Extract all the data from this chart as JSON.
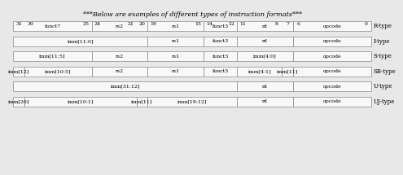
{
  "title": "***Below are examples of different types of instruction formats***",
  "title_fontsize": 5.8,
  "formats": [
    {
      "name": "R-type",
      "fields": [
        {
          "label": "funct7",
          "hi": 31,
          "lo": 25
        },
        {
          "label": "rs2",
          "hi": 24,
          "lo": 20
        },
        {
          "label": "rs1",
          "hi": 19,
          "lo": 15
        },
        {
          "label": "funct3",
          "hi": 14,
          "lo": 12
        },
        {
          "label": "rd",
          "hi": 11,
          "lo": 7
        },
        {
          "label": "opcode",
          "hi": 6,
          "lo": 0
        }
      ]
    },
    {
      "name": "I-type",
      "fields": [
        {
          "label": "imm[11:0]",
          "hi": 31,
          "lo": 20
        },
        {
          "label": "rs1",
          "hi": 19,
          "lo": 15
        },
        {
          "label": "funct3",
          "hi": 14,
          "lo": 12
        },
        {
          "label": "rd",
          "hi": 11,
          "lo": 7
        },
        {
          "label": "opcode",
          "hi": 6,
          "lo": 0
        }
      ]
    },
    {
      "name": "S-type",
      "fields": [
        {
          "label": "imm[11:5]",
          "hi": 31,
          "lo": 25
        },
        {
          "label": "rs2",
          "hi": 24,
          "lo": 20
        },
        {
          "label": "rs1",
          "hi": 19,
          "lo": 15
        },
        {
          "label": "funct3",
          "hi": 14,
          "lo": 12
        },
        {
          "label": "imm[4:0]",
          "hi": 11,
          "lo": 7
        },
        {
          "label": "opcode",
          "hi": 6,
          "lo": 0
        }
      ]
    },
    {
      "name": "SB-type",
      "fields": [
        {
          "label": "imm[12]",
          "hi": 31,
          "lo": 31
        },
        {
          "label": "imm[10:5]",
          "hi": 30,
          "lo": 25
        },
        {
          "label": "rs2",
          "hi": 24,
          "lo": 20
        },
        {
          "label": "rs1",
          "hi": 19,
          "lo": 15
        },
        {
          "label": "funct3",
          "hi": 14,
          "lo": 12
        },
        {
          "label": "imm[4:1]",
          "hi": 11,
          "lo": 8
        },
        {
          "label": "imm[11]",
          "hi": 7,
          "lo": 7
        },
        {
          "label": "opcode",
          "hi": 6,
          "lo": 0
        }
      ]
    },
    {
      "name": "U-type",
      "fields": [
        {
          "label": "imm[31:12]",
          "hi": 31,
          "lo": 12
        },
        {
          "label": "rd",
          "hi": 11,
          "lo": 7
        },
        {
          "label": "opcode",
          "hi": 6,
          "lo": 0
        }
      ]
    },
    {
      "name": "UJ-type",
      "fields": [
        {
          "label": "imm[20]",
          "hi": 31,
          "lo": 31
        },
        {
          "label": "imm[10:1]",
          "hi": 30,
          "lo": 21
        },
        {
          "label": "imm[11]",
          "hi": 20,
          "lo": 20
        },
        {
          "label": "imm[19:12]",
          "hi": 19,
          "lo": 12
        },
        {
          "label": "rd",
          "hi": 11,
          "lo": 7
        },
        {
          "label": "opcode",
          "hi": 6,
          "lo": 0
        }
      ]
    }
  ],
  "header_bits": [
    31,
    30,
    25,
    24,
    21,
    20,
    19,
    15,
    14,
    12,
    11,
    8,
    7,
    6,
    0
  ],
  "bg_color": "#e8e8e8",
  "box_facecolor": "#f8f8f8",
  "box_edgecolor": "#888888",
  "text_color": "black",
  "label_fontsize": 4.5,
  "type_fontsize": 5.0,
  "header_fontsize": 4.5,
  "lw": 0.5
}
